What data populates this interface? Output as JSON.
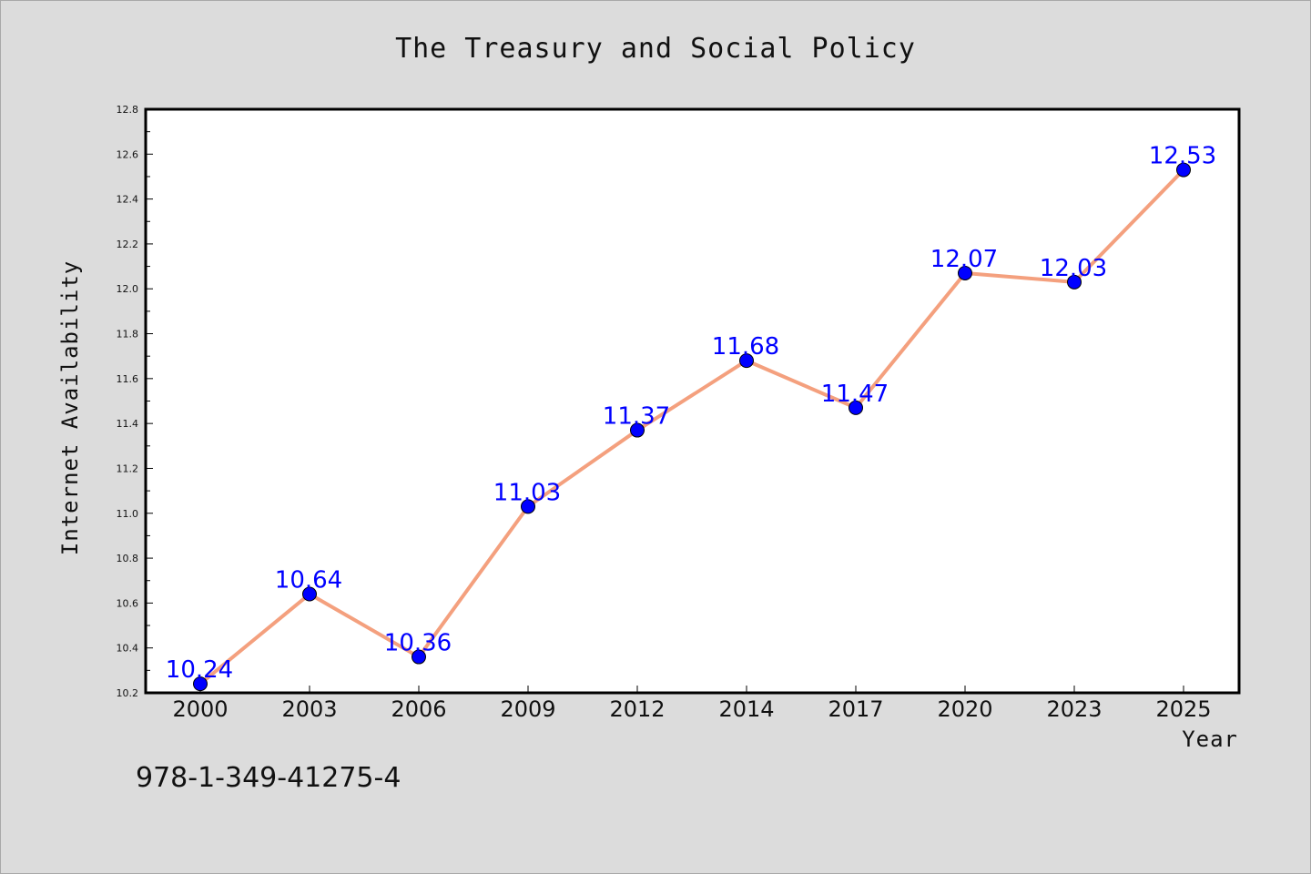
{
  "chart_data": {
    "type": "line",
    "title": "The Treasury and Social Policy",
    "xlabel": "Year",
    "ylabel": "Internet Availability",
    "categories": [
      "2000",
      "2003",
      "2006",
      "2009",
      "2012",
      "2014",
      "2017",
      "2020",
      "2023",
      "2025"
    ],
    "series": [
      {
        "values": [
          10.24,
          10.64,
          10.36,
          11.03,
          11.37,
          11.68,
          11.47,
          12.07,
          12.03,
          12.53
        ],
        "line_color": "#f4a07e",
        "marker_color": "#0000ff"
      }
    ],
    "data_labels": [
      "10.24",
      "10.64",
      "10.36",
      "11.03",
      "11.37",
      "11.68",
      "11.47",
      "12.07",
      "12.03",
      "12.53"
    ],
    "ylim": [
      10.2,
      12.8
    ],
    "yticks": [
      "10.2",
      "10.4",
      "10.6",
      "10.8",
      "11.0",
      "11.2",
      "11.4",
      "11.6",
      "11.8",
      "12.0",
      "12.2",
      "12.4",
      "12.6",
      "12.8"
    ],
    "grid": false,
    "legend": "none",
    "background": "#dcdcdc",
    "plot_background": "#ffffff"
  },
  "annotation": {
    "isbn": "978-1-349-41275-4"
  }
}
